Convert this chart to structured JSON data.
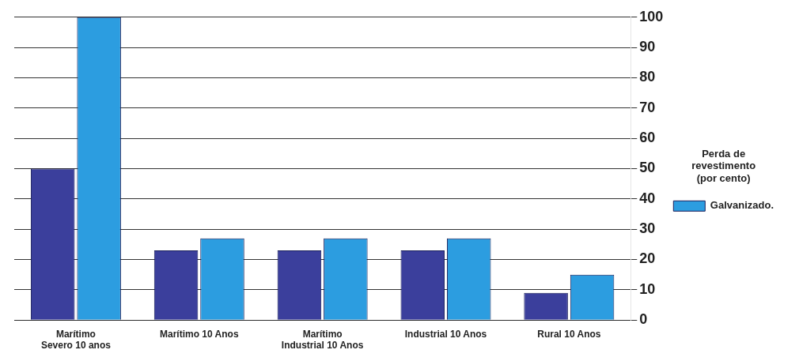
{
  "chart_data": {
    "type": "bar",
    "categories": [
      "Marítimo Severo 10 anos",
      "Marítimo 10 Anos",
      "Marítimo Industrial 10 Anos",
      "Industrial 10 Anos",
      "Rural 10 Anos"
    ],
    "series": [
      {
        "color": "#3b3f9c",
        "values": [
          50,
          23,
          23,
          23,
          9
        ]
      },
      {
        "name": "Galvanizado.",
        "color": "#2c9de0",
        "values": [
          100,
          27,
          27,
          27,
          15
        ]
      }
    ],
    "ylim": [
      0,
      100
    ],
    "yticks": [
      0,
      10,
      20,
      30,
      40,
      50,
      60,
      70,
      80,
      90,
      100
    ],
    "grid": "y",
    "legend": "right",
    "legend_title": "Perda de revestimento (por cento)"
  }
}
